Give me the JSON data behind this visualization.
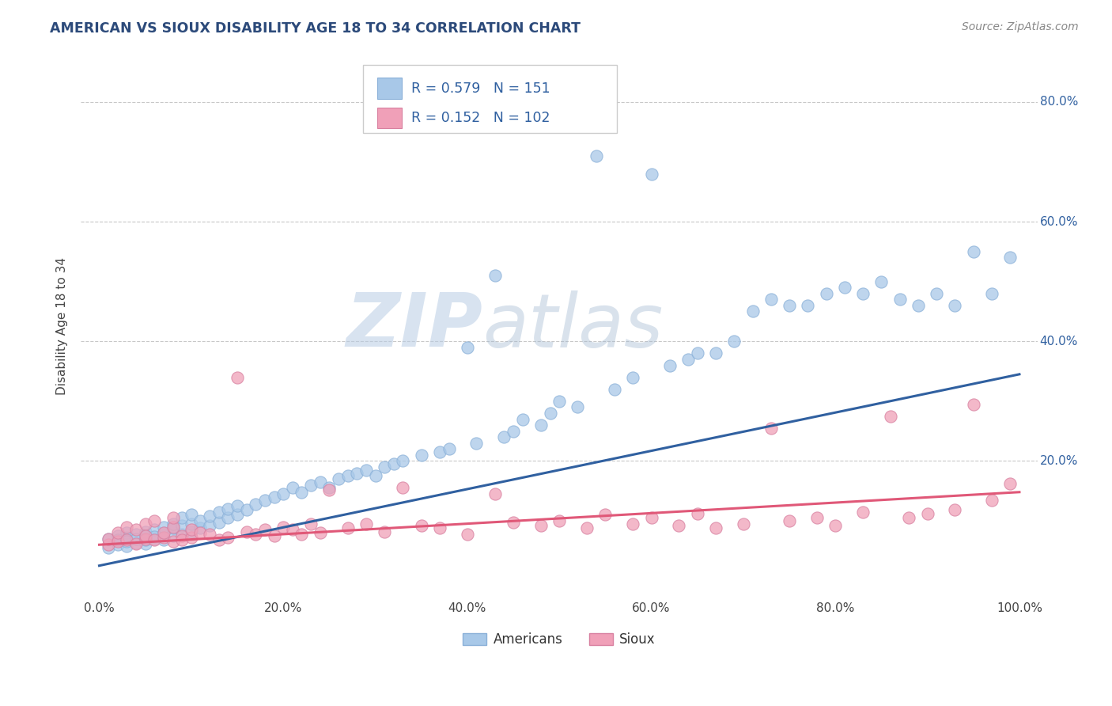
{
  "title": "AMERICAN VS SIOUX DISABILITY AGE 18 TO 34 CORRELATION CHART",
  "source": "Source: ZipAtlas.com",
  "ylabel": "Disability Age 18 to 34",
  "xlim": [
    -0.02,
    1.02
  ],
  "ylim": [
    -0.03,
    0.88
  ],
  "xticks": [
    0.0,
    0.2,
    0.4,
    0.6,
    0.8,
    1.0
  ],
  "xtick_labels": [
    "0.0%",
    "20.0%",
    "40.0%",
    "60.0%",
    "80.0%",
    "100.0%"
  ],
  "ytick_labels": [
    "20.0%",
    "40.0%",
    "60.0%",
    "80.0%"
  ],
  "yticks": [
    0.2,
    0.4,
    0.6,
    0.8
  ],
  "blue_color": "#a8c8e8",
  "pink_color": "#f0a0b8",
  "blue_line_color": "#3060a0",
  "pink_line_color": "#e05878",
  "title_color": "#2c4a7a",
  "axis_label_color": "#3060a0",
  "source_color": "#888888",
  "legend_r1": "R = 0.579",
  "legend_n1": "N = 151",
  "legend_r2": "R = 0.152",
  "legend_n2": "N = 102",
  "legend_label1": "Americans",
  "legend_label2": "Sioux",
  "watermark_zip": "ZIP",
  "watermark_atlas": "atlas",
  "blue_line_y_start": 0.025,
  "blue_line_y_end": 0.345,
  "pink_line_y_start": 0.06,
  "pink_line_y_end": 0.148,
  "blue_scatter_x": [
    0.01,
    0.01,
    0.02,
    0.02,
    0.02,
    0.03,
    0.03,
    0.03,
    0.03,
    0.04,
    0.04,
    0.04,
    0.05,
    0.05,
    0.05,
    0.05,
    0.06,
    0.06,
    0.06,
    0.07,
    0.07,
    0.07,
    0.08,
    0.08,
    0.08,
    0.09,
    0.09,
    0.09,
    0.1,
    0.1,
    0.1,
    0.11,
    0.11,
    0.12,
    0.12,
    0.13,
    0.13,
    0.14,
    0.14,
    0.15,
    0.15,
    0.16,
    0.17,
    0.18,
    0.19,
    0.2,
    0.21,
    0.22,
    0.23,
    0.24,
    0.25,
    0.26,
    0.27,
    0.28,
    0.29,
    0.3,
    0.31,
    0.32,
    0.33,
    0.35,
    0.37,
    0.38,
    0.4,
    0.41,
    0.43,
    0.44,
    0.45,
    0.46,
    0.48,
    0.49,
    0.5,
    0.52,
    0.54,
    0.56,
    0.58,
    0.6,
    0.62,
    0.64,
    0.65,
    0.67,
    0.69,
    0.71,
    0.73,
    0.75,
    0.77,
    0.79,
    0.81,
    0.83,
    0.85,
    0.87,
    0.89,
    0.91,
    0.93,
    0.95,
    0.97,
    0.99
  ],
  "blue_scatter_y": [
    0.055,
    0.07,
    0.06,
    0.075,
    0.068,
    0.058,
    0.072,
    0.08,
    0.065,
    0.063,
    0.078,
    0.07,
    0.062,
    0.075,
    0.082,
    0.068,
    0.07,
    0.085,
    0.073,
    0.068,
    0.08,
    0.09,
    0.075,
    0.088,
    0.095,
    0.078,
    0.092,
    0.105,
    0.082,
    0.095,
    0.11,
    0.088,
    0.1,
    0.092,
    0.108,
    0.098,
    0.115,
    0.105,
    0.12,
    0.11,
    0.125,
    0.118,
    0.128,
    0.135,
    0.14,
    0.145,
    0.155,
    0.148,
    0.16,
    0.165,
    0.155,
    0.17,
    0.175,
    0.18,
    0.185,
    0.175,
    0.19,
    0.195,
    0.2,
    0.21,
    0.215,
    0.22,
    0.39,
    0.23,
    0.51,
    0.24,
    0.25,
    0.27,
    0.26,
    0.28,
    0.3,
    0.29,
    0.71,
    0.32,
    0.34,
    0.68,
    0.36,
    0.37,
    0.38,
    0.38,
    0.4,
    0.45,
    0.47,
    0.46,
    0.46,
    0.48,
    0.49,
    0.48,
    0.5,
    0.47,
    0.46,
    0.48,
    0.46,
    0.55,
    0.48,
    0.54
  ],
  "pink_scatter_x": [
    0.01,
    0.01,
    0.02,
    0.02,
    0.03,
    0.03,
    0.04,
    0.04,
    0.05,
    0.05,
    0.05,
    0.06,
    0.06,
    0.07,
    0.07,
    0.08,
    0.08,
    0.08,
    0.09,
    0.09,
    0.1,
    0.1,
    0.11,
    0.12,
    0.13,
    0.14,
    0.15,
    0.16,
    0.17,
    0.18,
    0.19,
    0.2,
    0.21,
    0.22,
    0.23,
    0.24,
    0.25,
    0.27,
    0.29,
    0.31,
    0.33,
    0.35,
    0.37,
    0.4,
    0.43,
    0.45,
    0.48,
    0.5,
    0.53,
    0.55,
    0.58,
    0.6,
    0.63,
    0.65,
    0.67,
    0.7,
    0.73,
    0.75,
    0.78,
    0.8,
    0.83,
    0.86,
    0.88,
    0.9,
    0.93,
    0.95,
    0.97,
    0.99
  ],
  "pink_scatter_y": [
    0.06,
    0.07,
    0.065,
    0.08,
    0.068,
    0.09,
    0.062,
    0.085,
    0.07,
    0.095,
    0.075,
    0.068,
    0.1,
    0.072,
    0.08,
    0.065,
    0.09,
    0.105,
    0.075,
    0.068,
    0.072,
    0.085,
    0.08,
    0.078,
    0.068,
    0.072,
    0.34,
    0.082,
    0.078,
    0.085,
    0.075,
    0.09,
    0.085,
    0.078,
    0.095,
    0.08,
    0.152,
    0.088,
    0.095,
    0.082,
    0.155,
    0.092,
    0.088,
    0.078,
    0.145,
    0.098,
    0.092,
    0.1,
    0.088,
    0.11,
    0.095,
    0.105,
    0.092,
    0.112,
    0.088,
    0.095,
    0.255,
    0.1,
    0.105,
    0.092,
    0.115,
    0.275,
    0.105,
    0.112,
    0.118,
    0.295,
    0.135,
    0.162
  ]
}
